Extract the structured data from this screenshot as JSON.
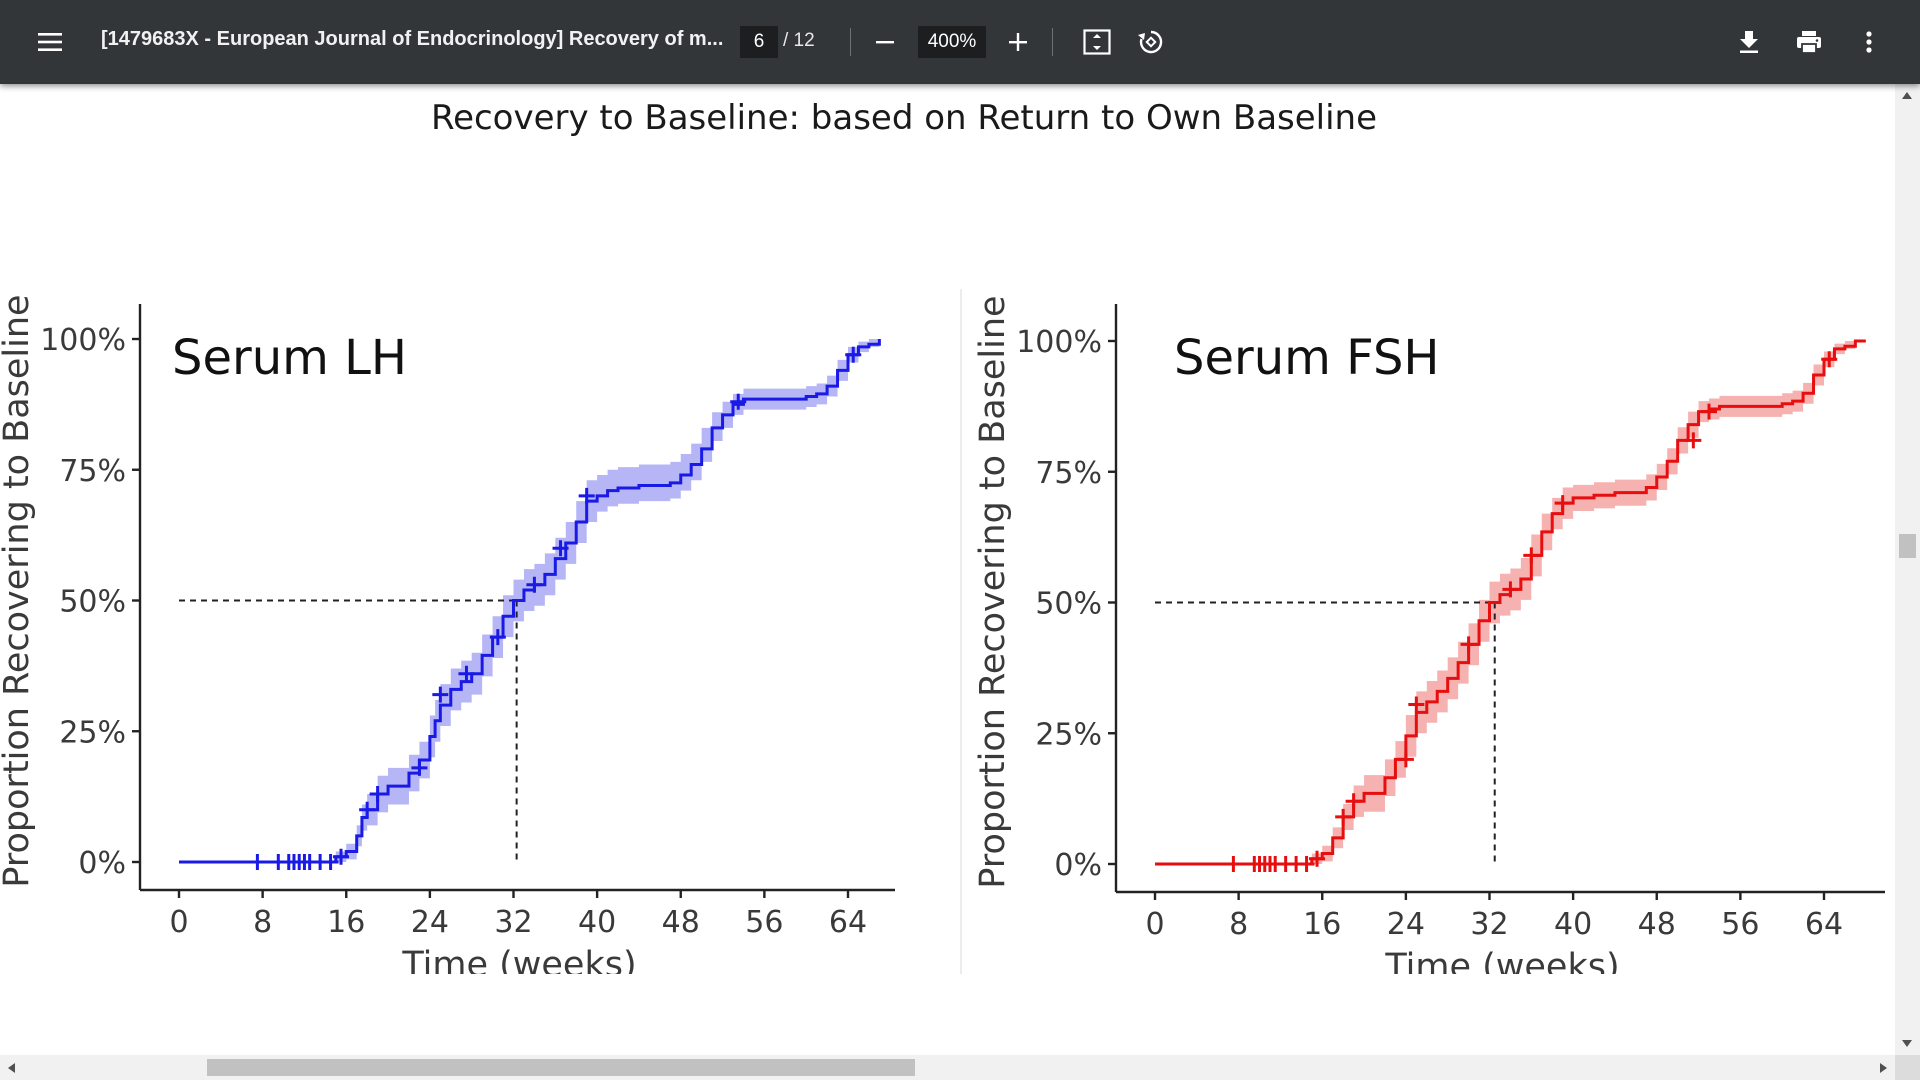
{
  "toolbar": {
    "document_title": "[1479683X - European Journal of Endocrinology] Recovery of m...",
    "page_current": "6",
    "page_total": "/ 12",
    "zoom": "400%",
    "icons": {
      "menu": "hamburger-menu-icon",
      "zoom_out": "minus-icon",
      "zoom_in": "plus-icon",
      "fit": "fit-to-page-icon",
      "rotate": "rotate-counterclockwise-icon",
      "download": "download-icon",
      "print": "printer-icon",
      "more": "more-vertical-icon"
    },
    "background": "#323639"
  },
  "heading": "Recovery to Baseline: based on Return to Own Baseline",
  "chart_data": [
    {
      "type": "line",
      "title": "Serum LH",
      "xlabel": "Time (weeks)",
      "ylabel": "Proportion Recovering to Baseline",
      "xlim": [
        -4,
        68
      ],
      "ylim": [
        0,
        1
      ],
      "xticks": [
        "0",
        "8",
        "16",
        "24",
        "32",
        "40",
        "48",
        "56",
        "64"
      ],
      "yticks": [
        "0%",
        "25%",
        "50%",
        "75%",
        "100%"
      ],
      "color": "#1a1ae6",
      "band_color": "#a9a9f5",
      "median_time_weeks": 32.3,
      "series": [
        {
          "x": [
            0,
            13,
            15,
            16,
            17,
            17.5,
            18,
            19,
            20,
            22,
            23,
            24,
            24.5,
            25,
            26,
            27,
            28,
            29,
            30,
            31,
            32,
            33,
            34,
            35,
            36,
            37,
            38,
            39,
            40,
            41,
            42,
            44,
            46,
            47,
            48,
            49,
            50,
            51,
            52,
            53,
            54,
            56,
            58,
            60,
            61,
            62,
            63,
            64,
            65,
            66,
            67
          ],
          "y": [
            0,
            0,
            0.01,
            0.02,
            0.05,
            0.085,
            0.1,
            0.13,
            0.145,
            0.17,
            0.195,
            0.24,
            0.27,
            0.3,
            0.33,
            0.345,
            0.36,
            0.395,
            0.43,
            0.47,
            0.5,
            0.52,
            0.53,
            0.55,
            0.58,
            0.61,
            0.65,
            0.69,
            0.7,
            0.71,
            0.715,
            0.72,
            0.72,
            0.725,
            0.74,
            0.76,
            0.79,
            0.83,
            0.855,
            0.875,
            0.885,
            0.885,
            0.885,
            0.89,
            0.895,
            0.91,
            0.94,
            0.97,
            0.985,
            0.99,
            1.0
          ],
          "lower": [
            0,
            0,
            0.0,
            0.005,
            0.03,
            0.06,
            0.07,
            0.095,
            0.11,
            0.135,
            0.16,
            0.2,
            0.23,
            0.26,
            0.29,
            0.305,
            0.32,
            0.355,
            0.39,
            0.43,
            0.46,
            0.48,
            0.49,
            0.51,
            0.54,
            0.57,
            0.61,
            0.65,
            0.67,
            0.68,
            0.685,
            0.69,
            0.69,
            0.695,
            0.71,
            0.73,
            0.765,
            0.805,
            0.83,
            0.855,
            0.865,
            0.865,
            0.865,
            0.87,
            0.875,
            0.89,
            0.92,
            0.955,
            0.975,
            0.985,
            1.0
          ],
          "upper": [
            0,
            0,
            0.02,
            0.035,
            0.07,
            0.11,
            0.13,
            0.165,
            0.18,
            0.205,
            0.23,
            0.28,
            0.31,
            0.34,
            0.37,
            0.385,
            0.4,
            0.435,
            0.47,
            0.51,
            0.54,
            0.56,
            0.57,
            0.59,
            0.62,
            0.65,
            0.69,
            0.73,
            0.74,
            0.75,
            0.755,
            0.76,
            0.76,
            0.765,
            0.78,
            0.8,
            0.83,
            0.86,
            0.88,
            0.895,
            0.905,
            0.905,
            0.905,
            0.91,
            0.915,
            0.93,
            0.96,
            0.985,
            0.995,
            1.0,
            1.0
          ],
          "censor_x": [
            7.5,
            9.5,
            10.5,
            11,
            11.5,
            12,
            12.5,
            13.5,
            14.5,
            15.5,
            18,
            19,
            23,
            25,
            27.5,
            30.5,
            34,
            36.5,
            39,
            53.5,
            64.5
          ],
          "censor_y": [
            0,
            0,
            0,
            0,
            0,
            0,
            0,
            0,
            0,
            0.01,
            0.1,
            0.13,
            0.18,
            0.32,
            0.36,
            0.43,
            0.53,
            0.6,
            0.7,
            0.88,
            0.97
          ]
        }
      ]
    },
    {
      "type": "line",
      "title": "Serum FSH",
      "xlabel": "Time (weeks)",
      "ylabel": "Proportion Recovering to Baseline",
      "xlim": [
        -4,
        70
      ],
      "ylim": [
        0,
        1
      ],
      "xticks": [
        "0",
        "8",
        "16",
        "24",
        "32",
        "40",
        "48",
        "56",
        "64"
      ],
      "yticks": [
        "0%",
        "25%",
        "50%",
        "75%",
        "100%"
      ],
      "color": "#e60e0e",
      "band_color": "#f5a3a3",
      "median_time_weeks": 32.5,
      "series": [
        {
          "x": [
            0,
            13,
            15,
            16,
            17,
            18,
            19,
            20,
            22,
            23,
            24,
            25,
            26,
            27,
            28,
            29,
            30,
            31,
            32,
            33,
            34,
            35,
            36,
            37,
            38,
            39,
            40,
            42,
            44,
            46,
            47,
            48,
            49,
            50,
            51,
            52,
            53,
            54,
            56,
            58,
            60,
            61,
            62,
            63,
            64,
            65,
            66,
            67,
            68
          ],
          "y": [
            0,
            0,
            0.01,
            0.02,
            0.05,
            0.09,
            0.12,
            0.135,
            0.165,
            0.2,
            0.245,
            0.29,
            0.31,
            0.33,
            0.355,
            0.385,
            0.42,
            0.465,
            0.5,
            0.515,
            0.525,
            0.545,
            0.59,
            0.635,
            0.67,
            0.69,
            0.7,
            0.705,
            0.71,
            0.71,
            0.72,
            0.74,
            0.77,
            0.81,
            0.84,
            0.865,
            0.87,
            0.875,
            0.875,
            0.875,
            0.88,
            0.885,
            0.9,
            0.935,
            0.965,
            0.985,
            0.99,
            1.0,
            1.0
          ],
          "lower": [
            0,
            0,
            0.0,
            0.005,
            0.03,
            0.065,
            0.09,
            0.1,
            0.13,
            0.165,
            0.205,
            0.25,
            0.27,
            0.29,
            0.315,
            0.345,
            0.38,
            0.425,
            0.46,
            0.475,
            0.485,
            0.505,
            0.55,
            0.6,
            0.64,
            0.66,
            0.675,
            0.68,
            0.685,
            0.685,
            0.695,
            0.715,
            0.745,
            0.785,
            0.815,
            0.845,
            0.85,
            0.855,
            0.855,
            0.855,
            0.86,
            0.865,
            0.88,
            0.915,
            0.95,
            0.975,
            0.985,
            1.0,
            1.0
          ],
          "upper": [
            0,
            0,
            0.02,
            0.035,
            0.07,
            0.115,
            0.15,
            0.17,
            0.2,
            0.235,
            0.285,
            0.33,
            0.35,
            0.37,
            0.395,
            0.425,
            0.46,
            0.505,
            0.54,
            0.555,
            0.565,
            0.585,
            0.63,
            0.67,
            0.7,
            0.72,
            0.725,
            0.73,
            0.735,
            0.735,
            0.745,
            0.765,
            0.795,
            0.835,
            0.865,
            0.885,
            0.89,
            0.895,
            0.895,
            0.895,
            0.9,
            0.905,
            0.92,
            0.955,
            0.98,
            0.995,
            1.0,
            1.0,
            1.0
          ],
          "censor_x": [
            7.5,
            9.5,
            10,
            10.5,
            11,
            11.5,
            12.5,
            13.5,
            14.5,
            15.5,
            18,
            19,
            24,
            25,
            30,
            34,
            36,
            39,
            51.5,
            53,
            64.5
          ],
          "censor_y": [
            0,
            0,
            0,
            0,
            0,
            0,
            0,
            0,
            0,
            0.01,
            0.09,
            0.12,
            0.2,
            0.305,
            0.42,
            0.525,
            0.59,
            0.69,
            0.81,
            0.865,
            0.965
          ]
        }
      ]
    }
  ]
}
